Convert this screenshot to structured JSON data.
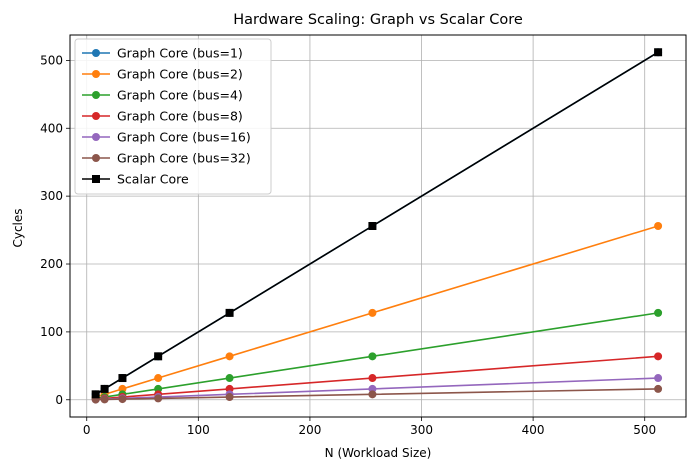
{
  "chart_data": {
    "type": "line",
    "title": "Hardware Scaling: Graph vs Scalar Core",
    "xlabel": "N (Workload Size)",
    "ylabel": "Cycles",
    "xlim": [
      -15,
      537
    ],
    "ylim": [
      -25.4,
      537.4
    ],
    "xticks": [
      0,
      100,
      200,
      300,
      400,
      500
    ],
    "yticks": [
      0,
      100,
      200,
      300,
      400,
      500
    ],
    "grid": true,
    "legend_position": "top-left",
    "x": [
      8,
      16,
      32,
      64,
      128,
      256,
      512
    ],
    "series": [
      {
        "name": "Graph Core (bus=1)",
        "color": "#1f77b4",
        "marker": "circle",
        "values": [
          8,
          16,
          32,
          64,
          128,
          256,
          512
        ]
      },
      {
        "name": "Graph Core (bus=2)",
        "color": "#ff7f0e",
        "marker": "circle",
        "values": [
          4,
          8,
          16,
          32,
          64,
          128,
          256
        ]
      },
      {
        "name": "Graph Core (bus=4)",
        "color": "#2ca02c",
        "marker": "circle",
        "values": [
          2,
          4,
          8,
          16,
          32,
          64,
          128
        ]
      },
      {
        "name": "Graph Core (bus=8)",
        "color": "#d62728",
        "marker": "circle",
        "values": [
          1,
          2,
          4,
          8,
          16,
          32,
          64
        ]
      },
      {
        "name": "Graph Core (bus=16)",
        "color": "#9467bd",
        "marker": "circle",
        "values": [
          0.5,
          1,
          2,
          4,
          8,
          16,
          32
        ]
      },
      {
        "name": "Graph Core (bus=32)",
        "color": "#8c564b",
        "marker": "circle",
        "values": [
          0.25,
          0.5,
          1,
          2,
          4,
          8,
          16
        ]
      },
      {
        "name": "Scalar Core",
        "color": "#000000",
        "marker": "square",
        "values": [
          8,
          16,
          32,
          64,
          128,
          256,
          512
        ]
      }
    ]
  }
}
